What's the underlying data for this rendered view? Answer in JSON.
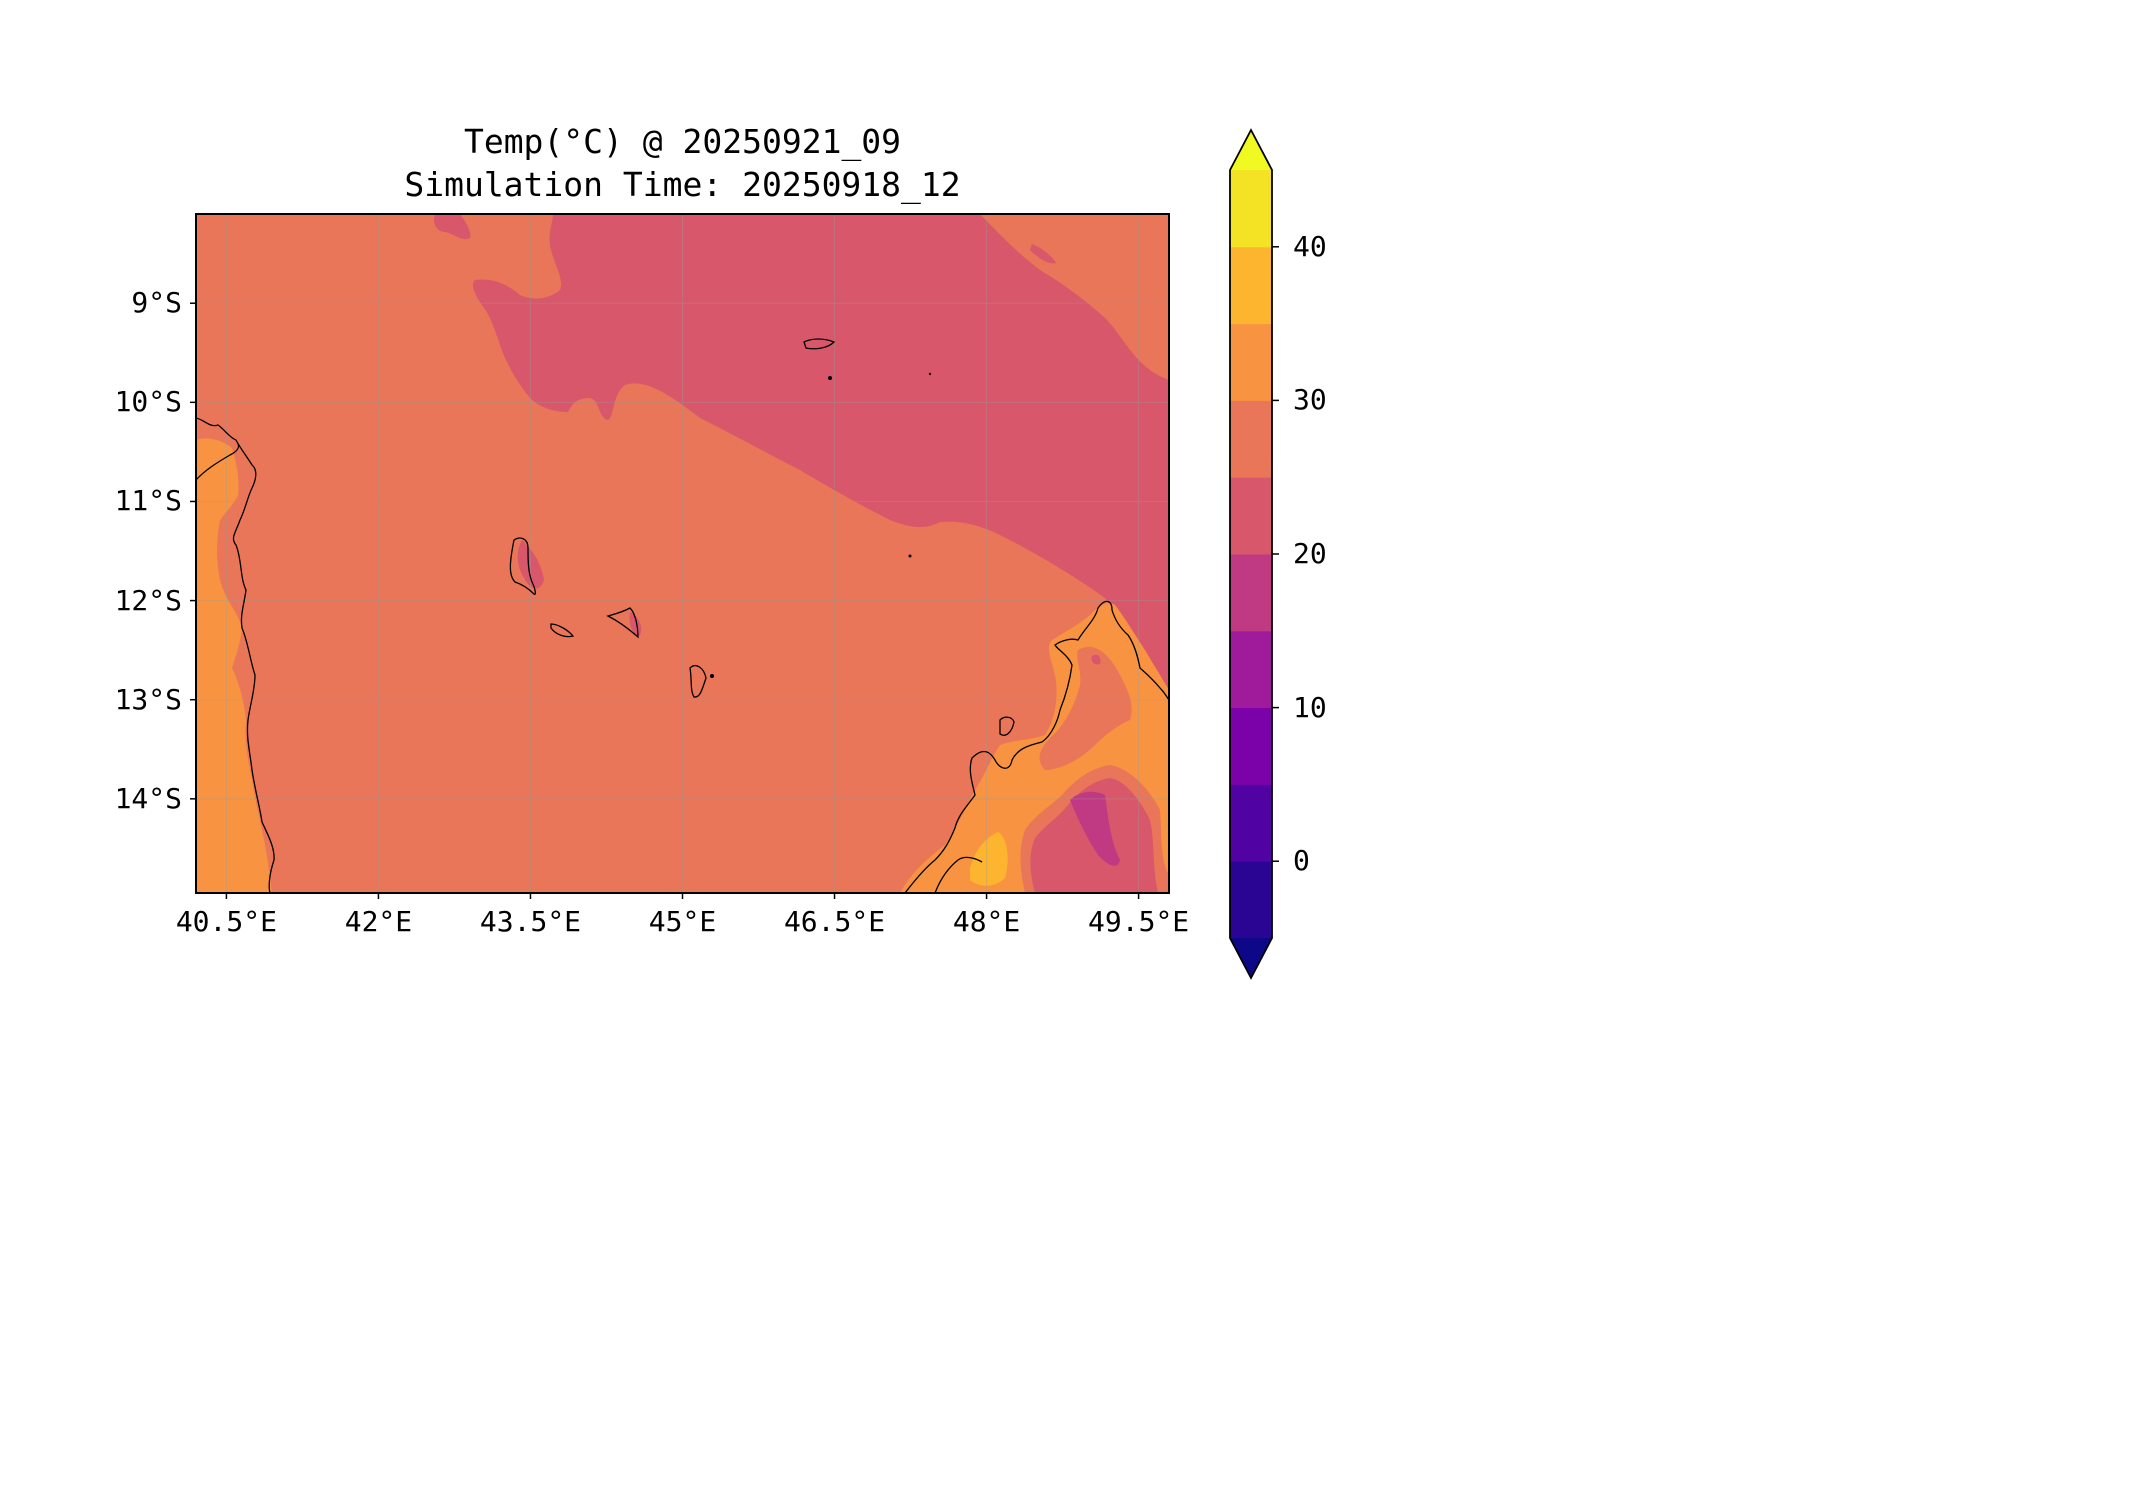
{
  "title": {
    "line1": "Temp(°C) @ 20250921_09",
    "line2": "Simulation Time: 20250918_12"
  },
  "map": {
    "variable": "Temp(°C)",
    "valid_time": "20250921_09",
    "simulation_time": "20250918_12",
    "lon_range": [
      40.2,
      49.8
    ],
    "lat_range": [
      -14.95,
      -8.1
    ],
    "x_ticks": [
      {
        "value": 40.5,
        "label": "40.5°E"
      },
      {
        "value": 42,
        "label": "42°E"
      },
      {
        "value": 43.5,
        "label": "43.5°E"
      },
      {
        "value": 45,
        "label": "45°E"
      },
      {
        "value": 46.5,
        "label": "46.5°E"
      },
      {
        "value": 48,
        "label": "48°E"
      },
      {
        "value": 49.5,
        "label": "49.5°E"
      }
    ],
    "y_ticks": [
      {
        "value": -9,
        "label": "9°S"
      },
      {
        "value": -10,
        "label": "10°S"
      },
      {
        "value": -11,
        "label": "11°S"
      },
      {
        "value": -12,
        "label": "12°S"
      },
      {
        "value": -13,
        "label": "13°S"
      },
      {
        "value": -14,
        "label": "14°S"
      }
    ],
    "gridlines": true,
    "coastlines": true,
    "regions": [
      "Comoros islands",
      "Mozambique/Tanzania coast",
      "northern Madagascar"
    ]
  },
  "colorbar": {
    "colormap": "plasma",
    "levels": [
      -5,
      0,
      5,
      10,
      15,
      20,
      25,
      30,
      35,
      40,
      45
    ],
    "extend": "both",
    "bands": [
      {
        "from": -5,
        "to": 0,
        "color": "#2a0593"
      },
      {
        "from": 0,
        "to": 5,
        "color": "#5002a2"
      },
      {
        "from": 5,
        "to": 10,
        "color": "#7a02a8"
      },
      {
        "from": 10,
        "to": 15,
        "color": "#a01a9c"
      },
      {
        "from": 15,
        "to": 20,
        "color": "#c03a83"
      },
      {
        "from": 20,
        "to": 25,
        "color": "#d8576b"
      },
      {
        "from": 25,
        "to": 30,
        "color": "#e97658"
      },
      {
        "from": 30,
        "to": 35,
        "color": "#f89441"
      },
      {
        "from": 35,
        "to": 40,
        "color": "#fdb42f"
      },
      {
        "from": 40,
        "to": 45,
        "color": "#f4e225"
      }
    ],
    "under_color": "#0d0887",
    "over_color": "#f0f921",
    "ticks": [
      {
        "value": 0,
        "label": "0"
      },
      {
        "value": 10,
        "label": "10"
      },
      {
        "value": 20,
        "label": "20"
      },
      {
        "value": 30,
        "label": "30"
      },
      {
        "value": 40,
        "label": "40"
      }
    ]
  }
}
